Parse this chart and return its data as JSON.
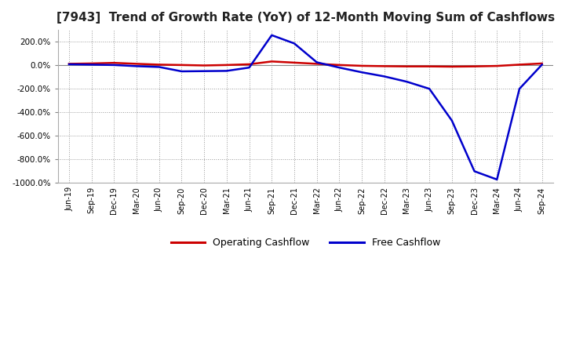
{
  "title": "[7943]  Trend of Growth Rate (YoY) of 12-Month Moving Sum of Cashflows",
  "title_fontsize": 11,
  "ylim": [
    -1000,
    300
  ],
  "yticks": [
    -1000,
    -800,
    -600,
    -400,
    -200,
    0,
    200
  ],
  "background_color": "#ffffff",
  "grid_color": "#999999",
  "x_labels": [
    "Jun-19",
    "Sep-19",
    "Dec-19",
    "Mar-20",
    "Jun-20",
    "Sep-20",
    "Dec-20",
    "Mar-21",
    "Jun-21",
    "Sep-21",
    "Dec-21",
    "Mar-22",
    "Jun-22",
    "Sep-22",
    "Dec-22",
    "Mar-23",
    "Jun-23",
    "Sep-23",
    "Dec-23",
    "Mar-24",
    "Jun-24",
    "Sep-24"
  ],
  "op_cf": [
    12,
    15,
    20,
    12,
    5,
    2,
    -2,
    2,
    8,
    32,
    22,
    12,
    2,
    -5,
    -8,
    -10,
    -10,
    -12,
    -10,
    -6,
    5,
    15
  ],
  "free_cf": [
    8,
    5,
    2,
    -8,
    -15,
    -52,
    -50,
    -48,
    -20,
    255,
    185,
    25,
    -20,
    -60,
    -95,
    -140,
    -200,
    -470,
    -900,
    -970,
    -200,
    5
  ],
  "op_color": "#cc0000",
  "free_color": "#0000cc",
  "legend_labels": [
    "Operating Cashflow",
    "Free Cashflow"
  ],
  "linewidth": 1.8
}
